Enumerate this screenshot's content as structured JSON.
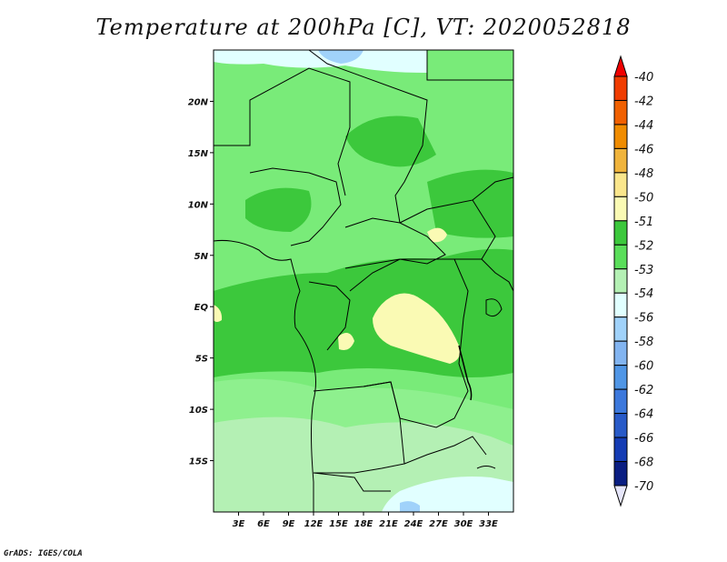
{
  "title": "Temperature at 200hPa [C], VT: 2020052818",
  "credit": "GrADS: IGES/COLA",
  "map": {
    "lon_range": [
      0,
      36
    ],
    "lat_range": [
      -20,
      25
    ],
    "x_ticks": [
      "3E",
      "6E",
      "9E",
      "12E",
      "15E",
      "18E",
      "21E",
      "24E",
      "27E",
      "30E",
      "33E"
    ],
    "y_ticks": [
      "20N",
      "15N",
      "10N",
      "5N",
      "EQ",
      "5S",
      "10S",
      "15S"
    ],
    "dominant_field_color": "#79eb79",
    "regions": [
      "-51 (pale yellow) patches over DR Congo near the equator",
      "-52 (green) band along Gulf of Guinea and central Congo",
      "-54/-53 (light green) over Angola and southern Africa",
      "-56 (light blue) at top near 24N and bottom near 20S"
    ]
  },
  "colorbar": {
    "labels": [
      "-40",
      "-42",
      "-44",
      "-46",
      "-48",
      "-50",
      "-51",
      "-52",
      "-53",
      "-54",
      "-56",
      "-58",
      "-60",
      "-62",
      "-64",
      "-66",
      "-68",
      "-70"
    ],
    "colors": [
      "#f00000",
      "#f03c00",
      "#f06000",
      "#f08c00",
      "#f0b43c",
      "#fae68c",
      "#fafab4",
      "#3cc83c",
      "#5ade5a",
      "#b4f0b4",
      "#e1ffff",
      "#a0d2fa",
      "#82b4f0",
      "#5096e6",
      "#3c78dc",
      "#285ac8",
      "#143cb4",
      "#0a1e82"
    ],
    "bottom_triangle_color": "#e6e6fa"
  }
}
